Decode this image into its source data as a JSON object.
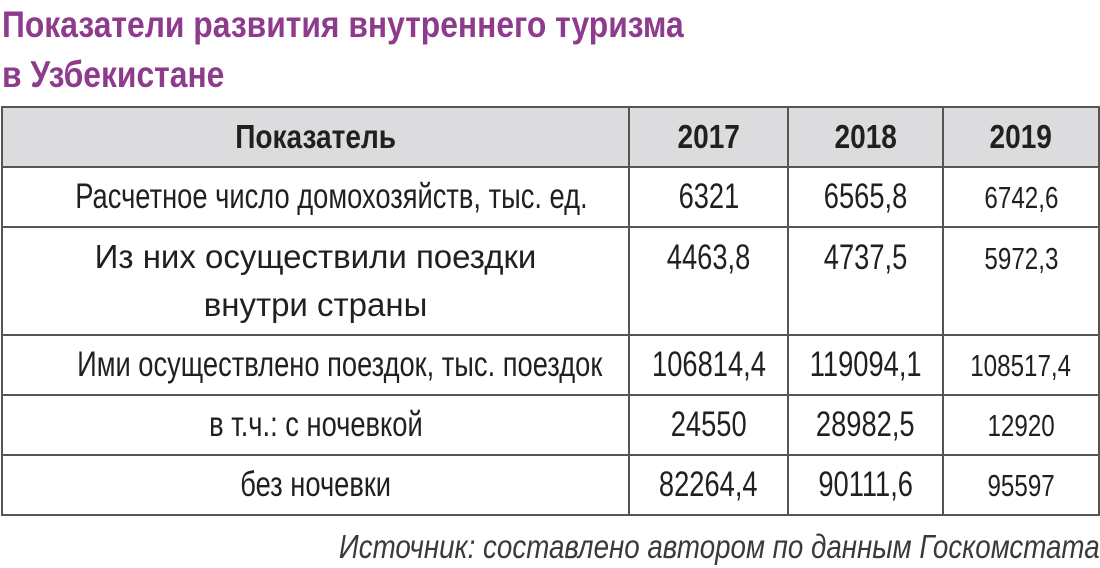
{
  "title": {
    "line1": "Показатели развития внутреннего туризма",
    "line2": "в Узбекистане"
  },
  "table": {
    "headers": [
      "Показатель",
      "2017",
      "2018",
      "2019"
    ],
    "rows": [
      {
        "label": "Расчетное число домохозяйств, тыс. ед.",
        "v2017": "6321",
        "v2018": "6565,8",
        "v2019": "6742,6"
      },
      {
        "label": "Из них осуществили поездки внутри страны",
        "v2017": "4463,8",
        "v2018": "4737,5",
        "v2019": "5972,3"
      },
      {
        "label": "Ими осуществлено поездок, тыс. поездок",
        "v2017": "106814,4",
        "v2018": "119094,1",
        "v2019": "108517,4"
      },
      {
        "label": "в т.ч.: с ночевкой",
        "v2017": "24550",
        "v2018": "28982,5",
        "v2019": "12920"
      },
      {
        "label": "без ночевки",
        "v2017": "82264,4",
        "v2018": "90111,6",
        "v2019": "95597"
      }
    ]
  },
  "source": "Источник: составлено автором по данным Госкомстата",
  "colors": {
    "title": "#8e3b8d",
    "header_bg": "#dcdcde",
    "border": "#555555"
  }
}
